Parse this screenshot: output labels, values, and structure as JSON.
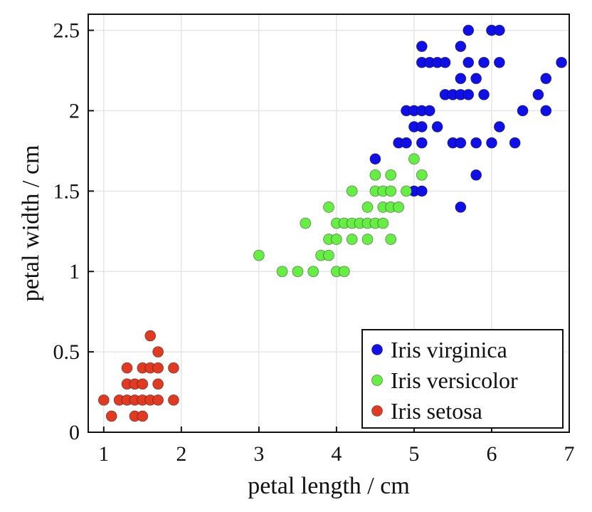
{
  "chart_data": {
    "type": "scatter",
    "xlabel": "petal length / cm",
    "ylabel": "petal width / cm",
    "xlim": [
      0.8,
      7
    ],
    "ylim": [
      0,
      2.6
    ],
    "xticks": [
      1,
      2,
      3,
      4,
      5,
      6,
      7
    ],
    "xtick_labels": [
      "1",
      "2",
      "3",
      "4",
      "5",
      "6",
      "7"
    ],
    "yticks": [
      0,
      0.5,
      1,
      1.5,
      2,
      2.5
    ],
    "ytick_labels": [
      "0",
      "0.5",
      "1",
      "1.5",
      "2",
      "2.5"
    ],
    "grid": true,
    "legend_position": "bottom-right",
    "series": [
      {
        "name": "Iris virginica",
        "color": "#1010e6",
        "points": [
          [
            4.5,
            1.7
          ],
          [
            4.8,
            1.8
          ],
          [
            4.9,
            1.8
          ],
          [
            4.9,
            2.0
          ],
          [
            5.0,
            2.0
          ],
          [
            5.0,
            1.9
          ],
          [
            5.0,
            1.5
          ],
          [
            5.1,
            1.5
          ],
          [
            5.1,
            1.8
          ],
          [
            5.1,
            1.9
          ],
          [
            5.1,
            2.0
          ],
          [
            5.1,
            2.3
          ],
          [
            5.1,
            2.4
          ],
          [
            5.2,
            2.0
          ],
          [
            5.2,
            2.3
          ],
          [
            5.3,
            1.9
          ],
          [
            5.3,
            2.3
          ],
          [
            5.4,
            2.1
          ],
          [
            5.4,
            2.3
          ],
          [
            5.5,
            1.8
          ],
          [
            5.5,
            2.1
          ],
          [
            5.6,
            1.4
          ],
          [
            5.6,
            1.8
          ],
          [
            5.6,
            2.1
          ],
          [
            5.6,
            2.2
          ],
          [
            5.6,
            2.4
          ],
          [
            5.7,
            2.1
          ],
          [
            5.7,
            2.3
          ],
          [
            5.7,
            2.5
          ],
          [
            5.8,
            1.6
          ],
          [
            5.8,
            1.8
          ],
          [
            5.8,
            2.2
          ],
          [
            5.9,
            2.1
          ],
          [
            5.9,
            2.3
          ],
          [
            6.0,
            1.8
          ],
          [
            6.0,
            2.5
          ],
          [
            6.1,
            1.9
          ],
          [
            6.1,
            2.3
          ],
          [
            6.1,
            2.5
          ],
          [
            6.3,
            1.8
          ],
          [
            6.4,
            2.0
          ],
          [
            6.6,
            2.1
          ],
          [
            6.7,
            2.0
          ],
          [
            6.7,
            2.2
          ],
          [
            6.9,
            2.3
          ]
        ]
      },
      {
        "name": "Iris versicolor",
        "color": "#66ee44",
        "points": [
          [
            3.0,
            1.1
          ],
          [
            3.3,
            1.0
          ],
          [
            3.5,
            1.0
          ],
          [
            3.6,
            1.3
          ],
          [
            3.7,
            1.0
          ],
          [
            3.8,
            1.1
          ],
          [
            3.9,
            1.1
          ],
          [
            3.9,
            1.2
          ],
          [
            3.9,
            1.4
          ],
          [
            4.0,
            1.0
          ],
          [
            4.0,
            1.2
          ],
          [
            4.0,
            1.3
          ],
          [
            4.1,
            1.0
          ],
          [
            4.1,
            1.3
          ],
          [
            4.2,
            1.2
          ],
          [
            4.2,
            1.3
          ],
          [
            4.2,
            1.5
          ],
          [
            4.3,
            1.3
          ],
          [
            4.4,
            1.2
          ],
          [
            4.4,
            1.3
          ],
          [
            4.4,
            1.4
          ],
          [
            4.5,
            1.3
          ],
          [
            4.5,
            1.5
          ],
          [
            4.5,
            1.6
          ],
          [
            4.6,
            1.3
          ],
          [
            4.6,
            1.4
          ],
          [
            4.6,
            1.5
          ],
          [
            4.7,
            1.2
          ],
          [
            4.7,
            1.4
          ],
          [
            4.7,
            1.5
          ],
          [
            4.7,
            1.6
          ],
          [
            4.8,
            1.4
          ],
          [
            4.9,
            1.5
          ],
          [
            5.0,
            1.7
          ],
          [
            5.1,
            1.6
          ]
        ]
      },
      {
        "name": "Iris setosa",
        "color": "#e03a22",
        "points": [
          [
            1.0,
            0.2
          ],
          [
            1.1,
            0.1
          ],
          [
            1.2,
            0.2
          ],
          [
            1.3,
            0.2
          ],
          [
            1.3,
            0.3
          ],
          [
            1.3,
            0.4
          ],
          [
            1.4,
            0.1
          ],
          [
            1.4,
            0.2
          ],
          [
            1.4,
            0.3
          ],
          [
            1.5,
            0.1
          ],
          [
            1.5,
            0.2
          ],
          [
            1.5,
            0.3
          ],
          [
            1.5,
            0.4
          ],
          [
            1.6,
            0.2
          ],
          [
            1.6,
            0.4
          ],
          [
            1.6,
            0.6
          ],
          [
            1.7,
            0.2
          ],
          [
            1.7,
            0.3
          ],
          [
            1.7,
            0.4
          ],
          [
            1.7,
            0.5
          ],
          [
            1.9,
            0.2
          ],
          [
            1.9,
            0.4
          ]
        ]
      }
    ]
  }
}
